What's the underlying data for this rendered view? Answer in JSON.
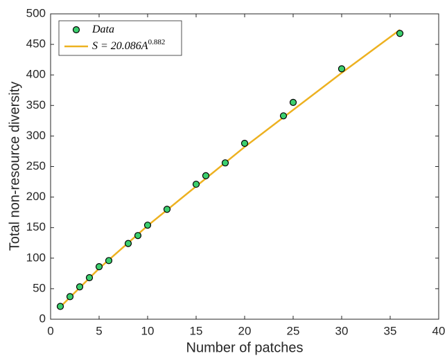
{
  "chart_data": {
    "type": "scatter",
    "xlabel": "Number of patches",
    "ylabel": "Total non-resource diversity",
    "xlim": [
      0,
      40
    ],
    "ylim": [
      0,
      500
    ],
    "xticks": [
      0,
      5,
      10,
      15,
      20,
      25,
      30,
      35,
      40
    ],
    "yticks": [
      0,
      50,
      100,
      150,
      200,
      250,
      300,
      350,
      400,
      450,
      500
    ],
    "legend": "upper left",
    "series": [
      {
        "name": "Data",
        "type": "scatter",
        "color": "#3ccf6e",
        "edgecolor": "#000000",
        "x": [
          1,
          2,
          3,
          4,
          5,
          6,
          8,
          9,
          10,
          12,
          15,
          16,
          18,
          20,
          24,
          25,
          30,
          36
        ],
        "values": [
          21,
          37,
          53,
          68,
          86,
          96,
          124,
          137,
          154,
          180,
          221,
          235,
          256,
          288,
          333,
          355,
          410,
          468
        ]
      },
      {
        "name": "S = 20.086A",
        "name_exponent": "0.882",
        "type": "line",
        "color": "#edb120",
        "x": [
          1,
          5,
          10,
          20,
          30,
          36
        ],
        "values": [
          20.1,
          83.1,
          153.1,
          282.1,
          403.3,
          473.8
        ]
      }
    ]
  }
}
